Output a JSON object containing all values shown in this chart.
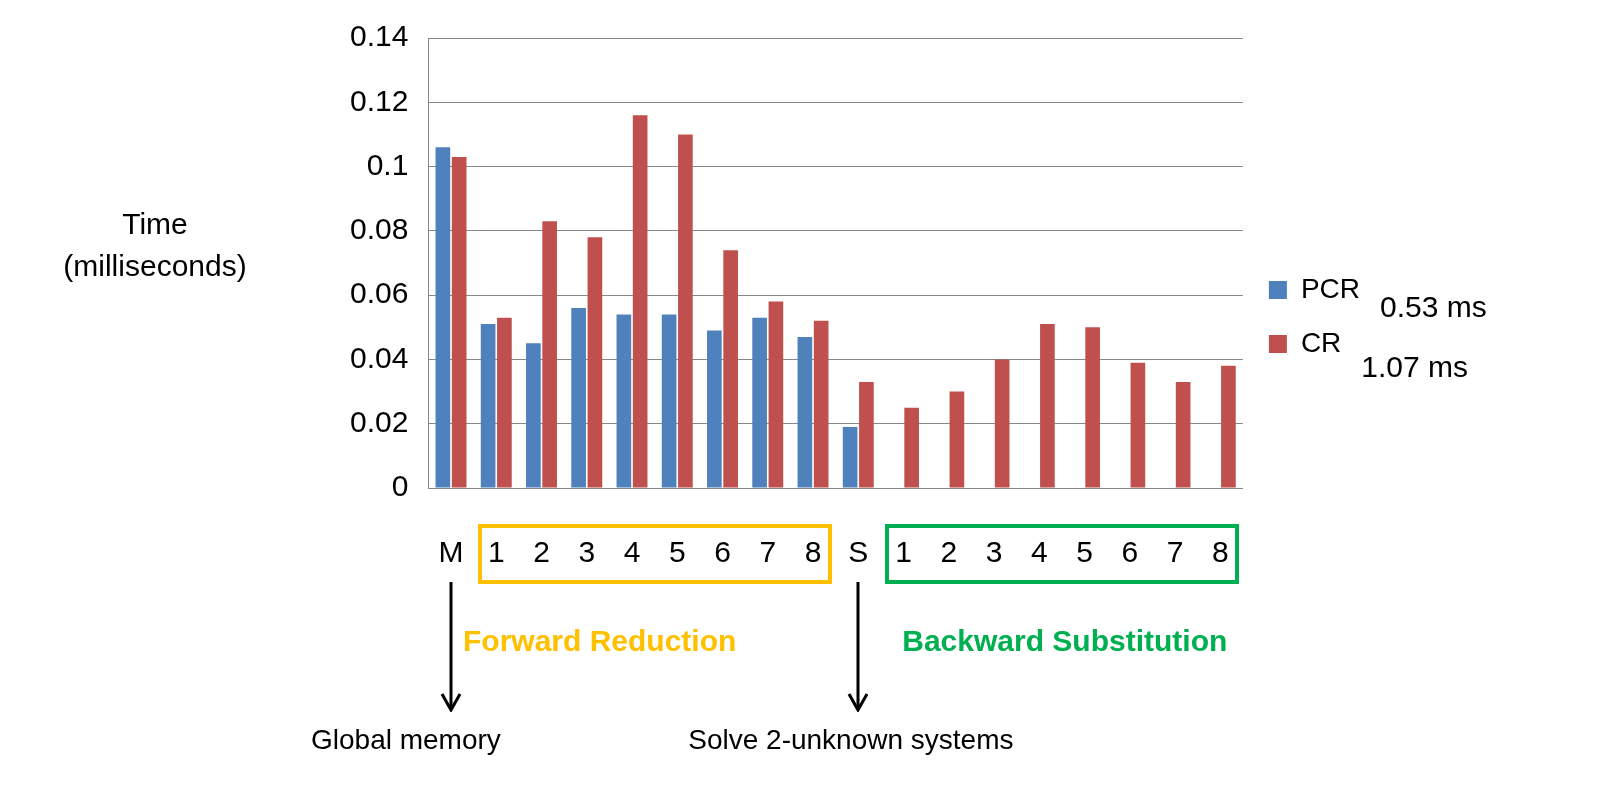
{
  "chart_data": {
    "type": "bar",
    "ylabel": "Time\n(milliseconds)",
    "categories": [
      "M",
      "1",
      "2",
      "3",
      "4",
      "5",
      "6",
      "7",
      "8",
      "S",
      "1",
      "2",
      "3",
      "4",
      "5",
      "6",
      "7",
      "8"
    ],
    "series": [
      {
        "name": "PCR",
        "color": "#4f81bd",
        "values": [
          0.106,
          0.051,
          0.045,
          0.056,
          0.054,
          0.054,
          0.049,
          0.053,
          0.047,
          0.019,
          null,
          null,
          null,
          null,
          null,
          null,
          null,
          null
        ]
      },
      {
        "name": "CR",
        "color": "#c0504d",
        "values": [
          0.103,
          0.053,
          0.083,
          0.078,
          0.116,
          0.11,
          0.074,
          0.058,
          0.052,
          0.033,
          0.025,
          0.03,
          0.04,
          0.051,
          0.05,
          0.039,
          0.033,
          0.038
        ]
      }
    ],
    "ylim": [
      0,
      0.14
    ],
    "yticks": [
      0,
      0.02,
      0.04,
      0.06,
      0.08,
      0.1,
      0.12,
      0.14
    ],
    "grid": "y",
    "legend": "right",
    "annotations": [
      "0.53 ms",
      "1.07 ms",
      "Forward Reduction",
      "Backward Substitution",
      "Global memory",
      "Solve 2-unknown systems"
    ]
  }
}
